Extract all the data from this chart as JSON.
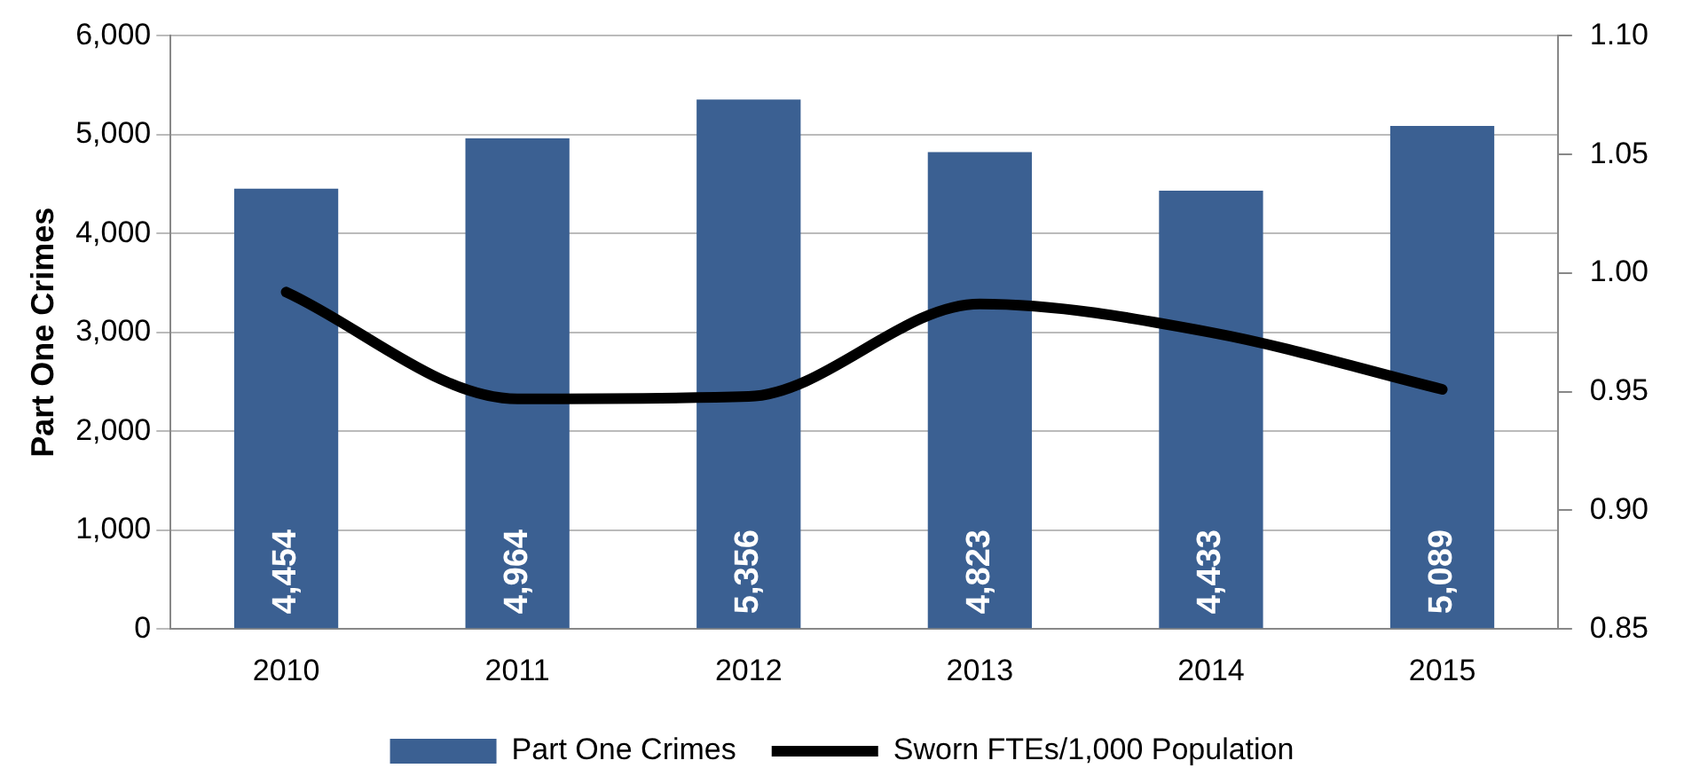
{
  "chart_data": {
    "type": "bar",
    "ylabel": "Part One Crimes",
    "categories": [
      "2010",
      "2011",
      "2012",
      "2013",
      "2014",
      "2015"
    ],
    "series": [
      {
        "name": "Part One Crimes",
        "color": "#3b6092",
        "values": [
          4454,
          4964,
          5356,
          4823,
          4433,
          5089
        ],
        "value_labels": [
          "4,454",
          "4,964",
          "5,356",
          "4,823",
          "4,433",
          "5,089"
        ]
      },
      {
        "name": "Sworn FTEs/1,000 Population",
        "type": "line",
        "axis": "y2",
        "color": "#000000",
        "values": [
          0.992,
          0.947,
          0.948,
          0.987,
          0.975,
          0.951
        ]
      }
    ],
    "ylim": [
      0,
      6000
    ],
    "yticks": [
      {
        "value": 0,
        "label": "0"
      },
      {
        "value": 1000,
        "label": "1,000"
      },
      {
        "value": 2000,
        "label": "2,000"
      },
      {
        "value": 3000,
        "label": "3,000"
      },
      {
        "value": 4000,
        "label": "4,000"
      },
      {
        "value": 5000,
        "label": "5,000"
      },
      {
        "value": 6000,
        "label": "6,000"
      }
    ],
    "y2lim": [
      0.85,
      1.1
    ],
    "y2ticks": [
      {
        "value": 0.85,
        "label": "0.85"
      },
      {
        "value": 0.9,
        "label": "0.90"
      },
      {
        "value": 0.95,
        "label": "0.95"
      },
      {
        "value": 1.0,
        "label": "1.00"
      },
      {
        "value": 1.05,
        "label": "1.05"
      },
      {
        "value": 1.1,
        "label": "1.10"
      }
    ],
    "grid": "y",
    "legend": "bottom",
    "marker": "none"
  }
}
